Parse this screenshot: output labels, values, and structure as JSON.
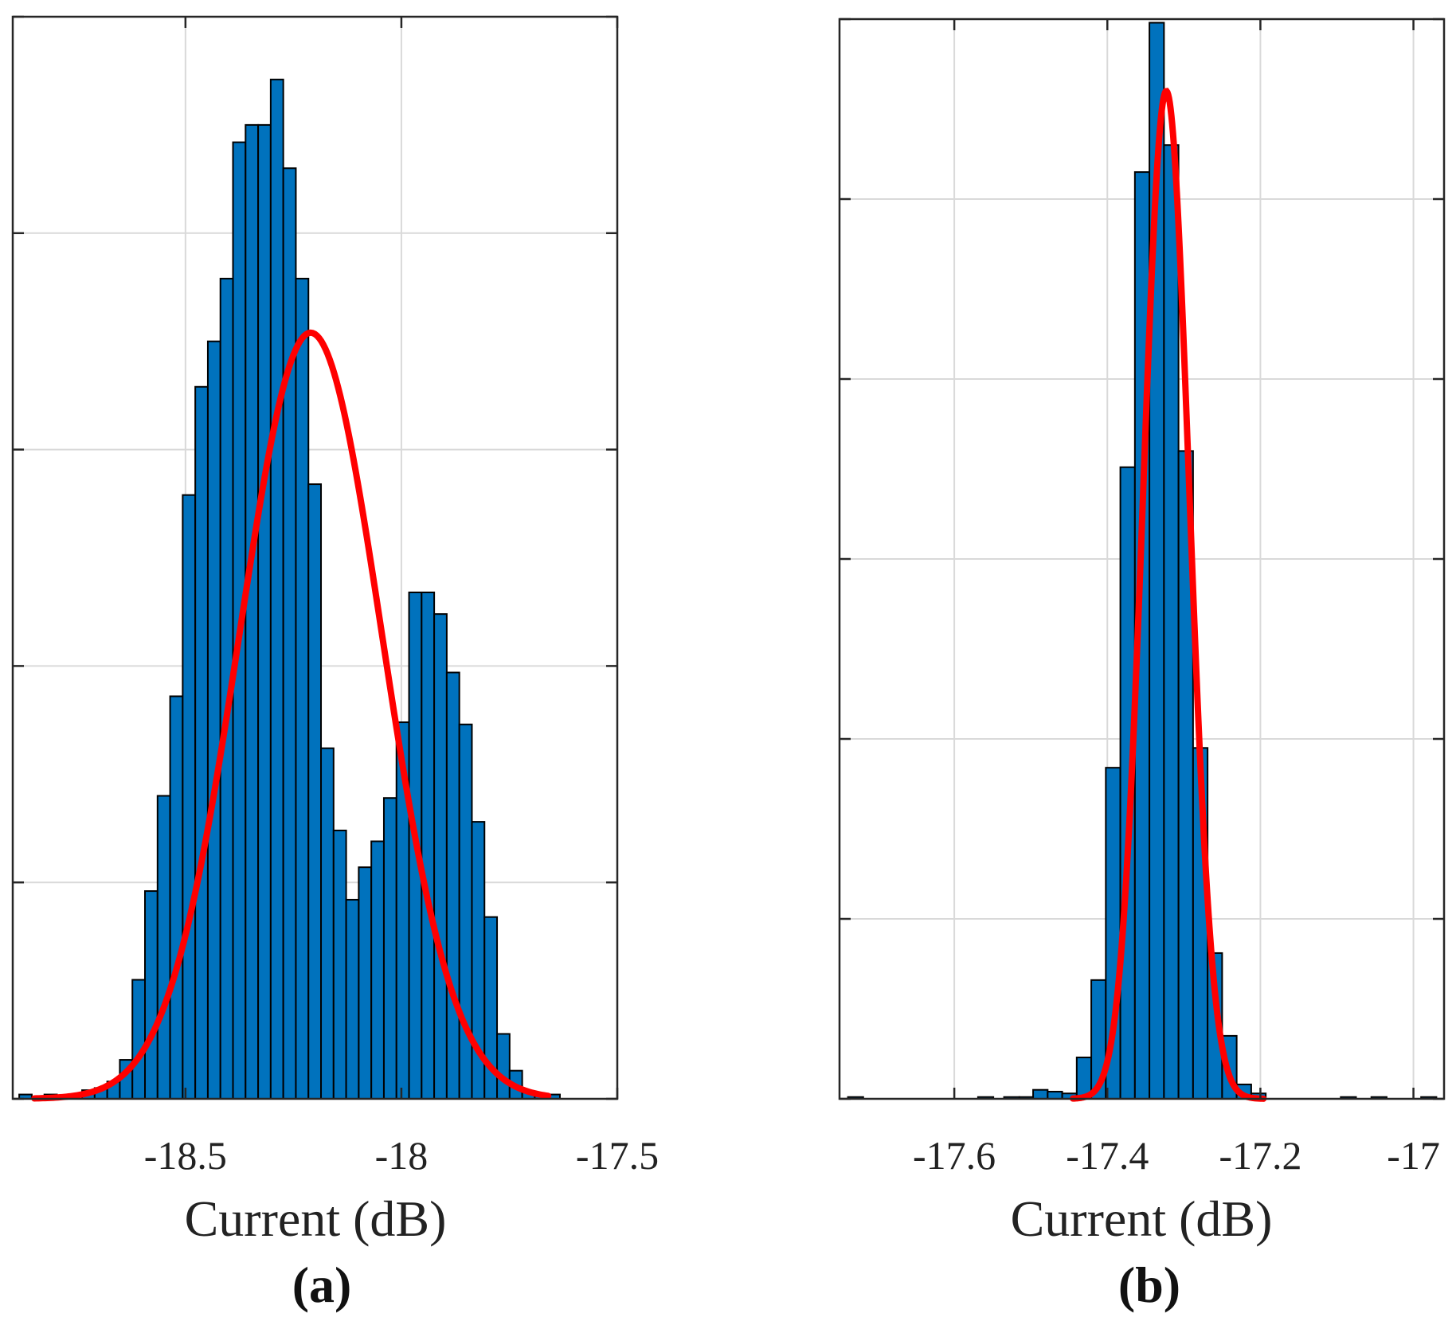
{
  "chart_data": [
    {
      "type": "bar",
      "panel_label": "(a)",
      "xlabel": "Current (dB)",
      "ylabel": "",
      "xlim": [
        -18.9,
        -17.5
      ],
      "ylim": [
        0,
        5
      ],
      "xticks": [
        -18.5,
        -18,
        -17.5
      ],
      "xtick_labels": [
        "-18.5",
        "-18",
        "-17.5"
      ],
      "yticks": [
        0,
        1,
        2,
        3,
        4,
        5
      ],
      "grid": true,
      "bar_color": "#0072BD",
      "fit_color": "#FF0000",
      "bin_start": -18.885,
      "bin_width": 0.02912,
      "counts": [
        0.02,
        0,
        0.02,
        0,
        0,
        0.04,
        0.05,
        0.08,
        0.18,
        0.55,
        0.96,
        1.4,
        1.86,
        2.79,
        3.29,
        3.5,
        3.79,
        4.42,
        4.5,
        4.5,
        4.71,
        4.3,
        3.79,
        2.84,
        1.62,
        1.24,
        0.92,
        1.07,
        1.19,
        1.39,
        1.74,
        2.34,
        2.34,
        2.24,
        1.97,
        1.73,
        1.28,
        0.84,
        0.3,
        0.13,
        0.03,
        0.02,
        0.02
      ],
      "fit": {
        "type": "normal",
        "mu": -18.21,
        "sigma": 0.165,
        "peak": 3.54,
        "range": [
          -18.85,
          -17.66
        ]
      }
    },
    {
      "type": "bar",
      "panel_label": "(b)",
      "xlabel": "Current (dB)",
      "ylabel": "",
      "xlim": [
        -17.75,
        -16.96
      ],
      "ylim": [
        0,
        6
      ],
      "xticks": [
        -17.6,
        -17.4,
        -17.2,
        -17
      ],
      "xtick_labels": [
        "-17.6",
        "-17.4",
        "-17.2",
        "-17"
      ],
      "yticks": [
        0,
        1,
        2,
        3,
        4,
        5,
        6
      ],
      "grid": true,
      "bar_color": "#0072BD",
      "fit_color": "#FF0000",
      "bins": [
        [
          -17.739,
          -17.719,
          0.01
        ],
        [
          -17.569,
          -17.549,
          0.01
        ],
        [
          -17.535,
          -17.515,
          0.01
        ],
        [
          -17.515,
          -17.497,
          0.01
        ],
        [
          -17.497,
          -17.478,
          0.05
        ],
        [
          -17.478,
          -17.459,
          0.04
        ],
        [
          -17.459,
          -17.44,
          0.03
        ],
        [
          -17.44,
          -17.421,
          0.23
        ],
        [
          -17.421,
          -17.402,
          0.66
        ],
        [
          -17.402,
          -17.383,
          1.84
        ],
        [
          -17.383,
          -17.364,
          3.51
        ],
        [
          -17.364,
          -17.345,
          5.15
        ],
        [
          -17.345,
          -17.326,
          5.98
        ],
        [
          -17.326,
          -17.307,
          5.3
        ],
        [
          -17.307,
          -17.288,
          3.6
        ],
        [
          -17.288,
          -17.269,
          1.95
        ],
        [
          -17.269,
          -17.25,
          0.81
        ],
        [
          -17.25,
          -17.231,
          0.35
        ],
        [
          -17.231,
          -17.212,
          0.08
        ],
        [
          -17.212,
          -17.193,
          0.03
        ],
        [
          -17.095,
          -17.075,
          0.01
        ],
        [
          -17.055,
          -17.035,
          0.01
        ],
        [
          -16.99,
          -16.97,
          0.01
        ]
      ],
      "fit": {
        "type": "normal",
        "mu": -17.323,
        "sigma": 0.03,
        "peak": 5.6,
        "range": [
          -17.445,
          -17.196
        ]
      }
    }
  ]
}
